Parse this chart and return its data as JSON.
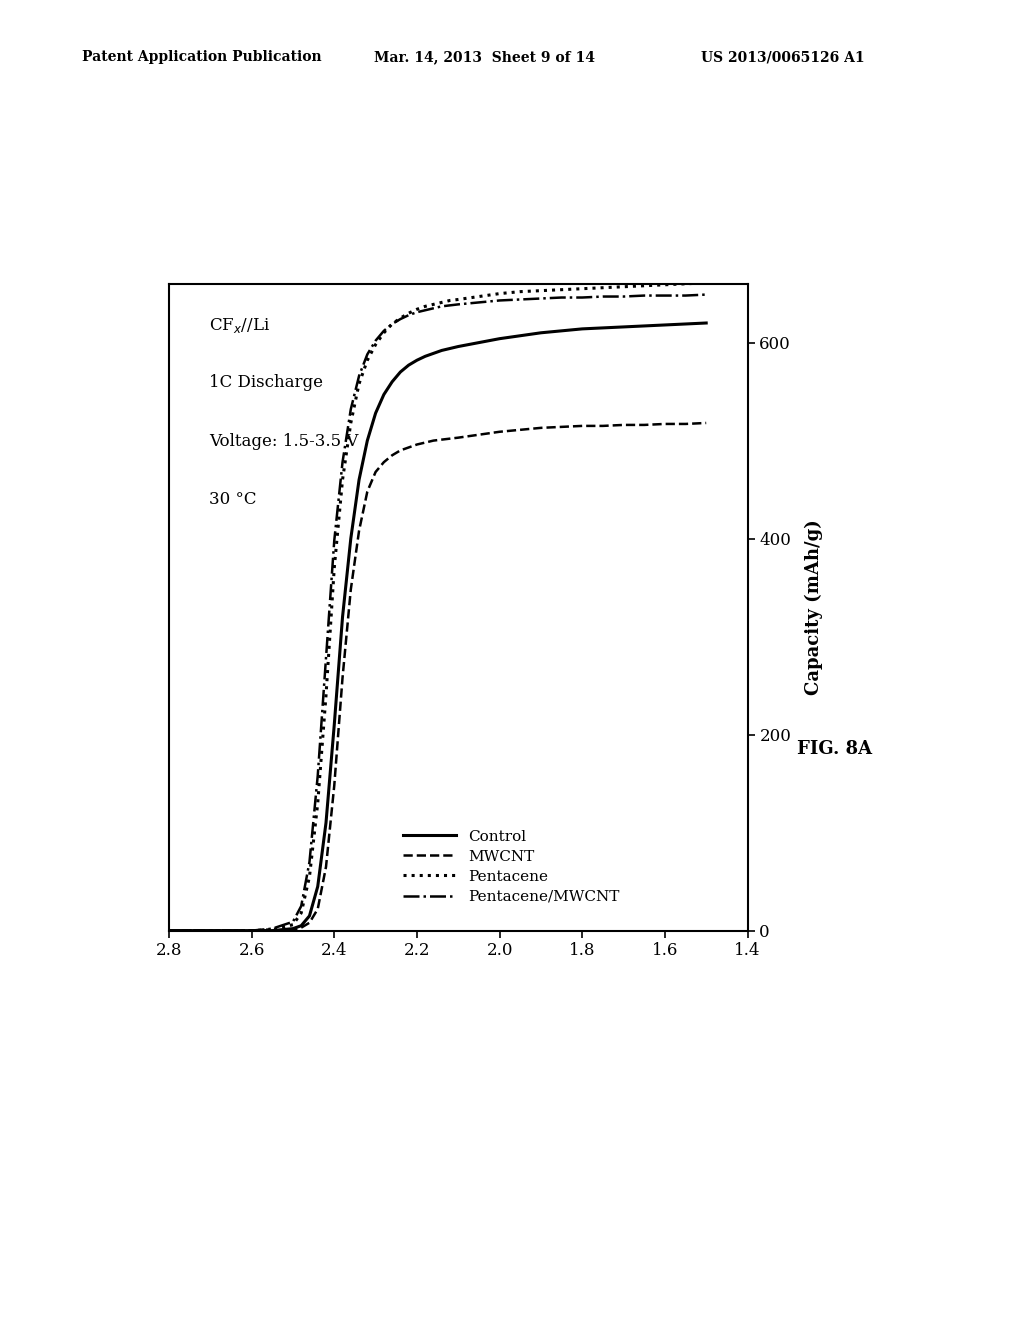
{
  "header_left": "Patent Application Publication",
  "header_mid": "Mar. 14, 2013  Sheet 9 of 14",
  "header_right": "US 2013/0065126 A1",
  "fig_label": "FIG. 8A",
  "ylabel": "Capacity (mAh/g)",
  "xlim": [
    2.8,
    1.4
  ],
  "ylim": [
    0,
    660
  ],
  "xticks": [
    2.8,
    2.6,
    2.4,
    2.2,
    2.0,
    1.8,
    1.6,
    1.4
  ],
  "yticks": [
    0,
    200,
    400,
    600
  ],
  "series": [
    {
      "name": "Control",
      "linestyle": "solid",
      "color": "#000000",
      "linewidth": 2.2,
      "x": [
        2.8,
        2.75,
        2.7,
        2.65,
        2.6,
        2.55,
        2.5,
        2.48,
        2.46,
        2.44,
        2.42,
        2.4,
        2.38,
        2.36,
        2.34,
        2.32,
        2.3,
        2.28,
        2.26,
        2.24,
        2.22,
        2.2,
        2.18,
        2.16,
        2.14,
        2.12,
        2.1,
        2.05,
        2.0,
        1.95,
        1.9,
        1.85,
        1.8,
        1.75,
        1.7,
        1.65,
        1.6,
        1.55,
        1.5
      ],
      "y": [
        0,
        0,
        0,
        0,
        0,
        0,
        2,
        5,
        15,
        45,
        110,
        210,
        320,
        400,
        460,
        500,
        528,
        547,
        560,
        570,
        577,
        582,
        586,
        589,
        592,
        594,
        596,
        600,
        604,
        607,
        610,
        612,
        614,
        615,
        616,
        617,
        618,
        619,
        620
      ]
    },
    {
      "name": "MWCNT",
      "linestyle": "dashed",
      "color": "#000000",
      "linewidth": 1.8,
      "x": [
        2.8,
        2.75,
        2.7,
        2.65,
        2.6,
        2.55,
        2.5,
        2.48,
        2.46,
        2.44,
        2.42,
        2.4,
        2.38,
        2.36,
        2.34,
        2.32,
        2.3,
        2.28,
        2.26,
        2.24,
        2.22,
        2.2,
        2.18,
        2.16,
        2.14,
        2.12,
        2.1,
        2.05,
        2.0,
        1.95,
        1.9,
        1.85,
        1.8,
        1.75,
        1.7,
        1.65,
        1.6,
        1.55,
        1.5
      ],
      "y": [
        0,
        0,
        0,
        0,
        0,
        0,
        1,
        3,
        8,
        22,
        65,
        148,
        258,
        348,
        408,
        448,
        468,
        478,
        485,
        490,
        493,
        496,
        498,
        500,
        501,
        502,
        503,
        506,
        509,
        511,
        513,
        514,
        515,
        515,
        516,
        516,
        517,
        517,
        518
      ]
    },
    {
      "name": "Pentacene",
      "linestyle": "dotted",
      "color": "#000000",
      "linewidth": 2.2,
      "x": [
        2.8,
        2.75,
        2.7,
        2.65,
        2.6,
        2.55,
        2.5,
        2.48,
        2.46,
        2.44,
        2.42,
        2.4,
        2.38,
        2.36,
        2.34,
        2.32,
        2.3,
        2.28,
        2.26,
        2.24,
        2.22,
        2.2,
        2.18,
        2.16,
        2.14,
        2.12,
        2.1,
        2.05,
        2.0,
        1.95,
        1.9,
        1.85,
        1.8,
        1.75,
        1.7,
        1.65,
        1.6,
        1.55,
        1.5
      ],
      "y": [
        0,
        0,
        0,
        0,
        0,
        1,
        6,
        18,
        55,
        130,
        240,
        370,
        460,
        518,
        558,
        582,
        598,
        610,
        619,
        625,
        630,
        634,
        637,
        639,
        641,
        643,
        644,
        647,
        650,
        652,
        653,
        654,
        655,
        656,
        657,
        658,
        659,
        660,
        661
      ]
    },
    {
      "name": "Pentacene/MWCNT",
      "linestyle": "dashdot",
      "color": "#000000",
      "linewidth": 1.8,
      "x": [
        2.8,
        2.75,
        2.7,
        2.65,
        2.6,
        2.55,
        2.5,
        2.48,
        2.46,
        2.44,
        2.42,
        2.4,
        2.38,
        2.36,
        2.34,
        2.32,
        2.3,
        2.28,
        2.26,
        2.24,
        2.22,
        2.2,
        2.18,
        2.16,
        2.14,
        2.12,
        2.1,
        2.05,
        2.0,
        1.95,
        1.9,
        1.85,
        1.8,
        1.75,
        1.7,
        1.65,
        1.6,
        1.55,
        1.5
      ],
      "y": [
        0,
        0,
        0,
        0,
        0,
        2,
        9,
        25,
        70,
        158,
        278,
        398,
        478,
        532,
        566,
        588,
        602,
        612,
        619,
        624,
        628,
        631,
        633,
        635,
        637,
        638,
        639,
        641,
        643,
        644,
        645,
        646,
        646,
        647,
        647,
        648,
        648,
        648,
        649
      ]
    }
  ],
  "background_color": "#ffffff",
  "annotation": [
    "CF$_x$//Li",
    "1C Discharge",
    "Voltage: 1.5-3.5 V",
    "30 °C"
  ]
}
